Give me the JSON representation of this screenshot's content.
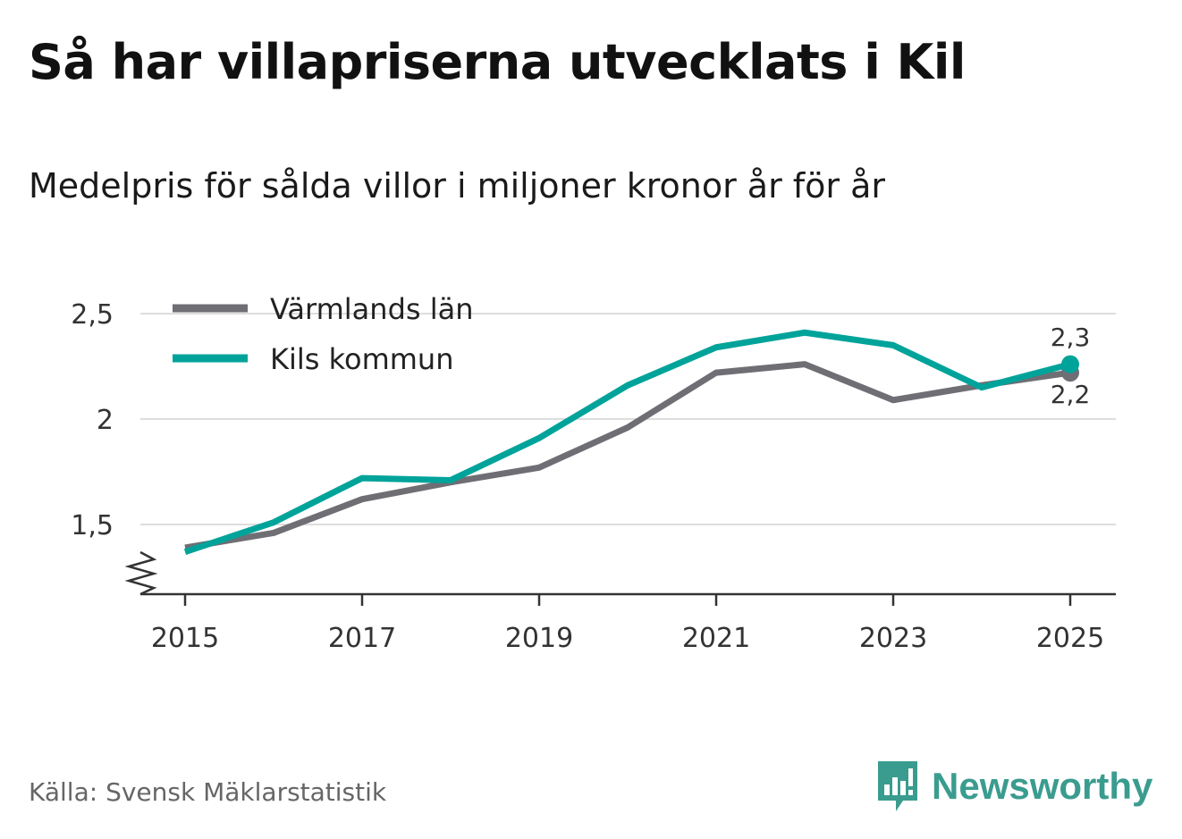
{
  "title": "Så har villapriserna utvecklats i Kil",
  "subtitle": "Medelpris för sålda villor i miljoner kronor år för år",
  "source": "Källa: Svensk Mäklarstatistik",
  "brand": {
    "name": "Newsworthy",
    "icon": "newsworthy-logo-icon",
    "color": "#3a9c8f"
  },
  "chart_data": {
    "type": "line",
    "x": [
      2015,
      2016,
      2017,
      2018,
      2019,
      2020,
      2021,
      2022,
      2023,
      2024,
      2025
    ],
    "series": [
      {
        "name": "Värmlands län",
        "color": "#6f6e74",
        "values": [
          1.39,
          1.46,
          1.62,
          1.7,
          1.77,
          1.96,
          2.22,
          2.26,
          2.09,
          2.16,
          2.22
        ],
        "end_label": "2,2"
      },
      {
        "name": "Kils kommun",
        "color": "#00a39a",
        "values": [
          1.37,
          1.51,
          1.72,
          1.71,
          1.91,
          2.16,
          2.34,
          2.41,
          2.35,
          2.15,
          2.26
        ],
        "end_label": "2,3"
      }
    ],
    "xticks": [
      "2015",
      "2017",
      "2019",
      "2021",
      "2023",
      "2025"
    ],
    "yticks": [
      {
        "value": 1.5,
        "label": "1,5"
      },
      {
        "value": 2.0,
        "label": "2"
      },
      {
        "value": 2.5,
        "label": "2,5"
      }
    ],
    "ylim": [
      1.18,
      2.6
    ],
    "xlim": [
      2014.5,
      2025.5
    ],
    "grid": true,
    "axis_break": true,
    "legend_position": "top-left"
  }
}
